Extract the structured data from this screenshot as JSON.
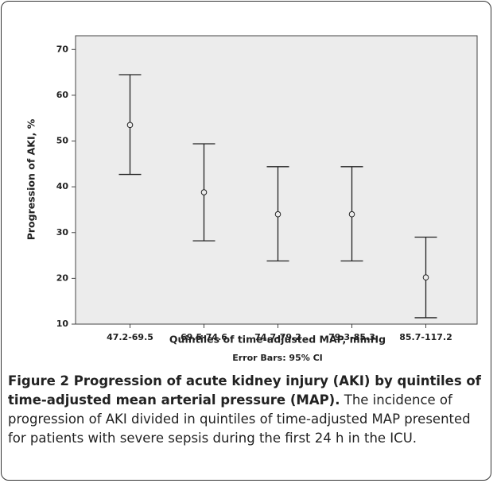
{
  "chart_data": {
    "type": "errorbar",
    "categories": [
      "47.2-69.5",
      "69.5-74.6",
      "74.7-79.2",
      "79.3-85.3",
      "85.7-117.2"
    ],
    "values": [
      53.5,
      38.8,
      34.0,
      34.0,
      20.2
    ],
    "ci_low": [
      42.7,
      28.2,
      23.8,
      23.8,
      11.4
    ],
    "ci_high": [
      64.5,
      49.4,
      44.4,
      44.4,
      29.0
    ],
    "ylim": [
      10,
      73
    ],
    "yticks": [
      10,
      20,
      30,
      40,
      50,
      60,
      70
    ],
    "ylabel": "Progression of AKI, %",
    "xlabel": "Quintiles of time-adjusted MAP, mmHg",
    "note": "Error Bars: 95% CI",
    "color": "#222222"
  },
  "caption": {
    "title": "Figure 2 Progression of acute kidney injury (AKI) by quintiles of time-adjusted mean arterial pressure (MAP).",
    "text": "The incidence of progression of AKI divided in quintiles of time-adjusted MAP presented for patients with severe sepsis during the first 24 h in the ICU."
  }
}
